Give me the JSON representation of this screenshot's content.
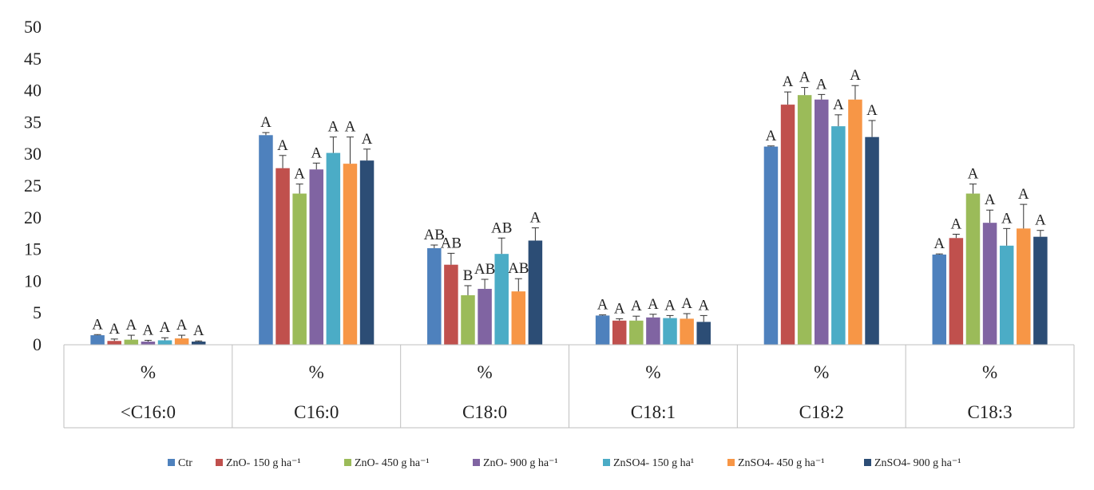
{
  "chart_data": {
    "type": "bar",
    "ylim": [
      0,
      50
    ],
    "yticks": [
      "0",
      "5",
      "10",
      "15",
      "20",
      "25",
      "30",
      "35",
      "40",
      "45",
      "50"
    ],
    "unit_row": [
      "%",
      "%",
      "%",
      "%",
      "%",
      "%"
    ],
    "categories": [
      "<C16:0",
      "C16:0",
      "C18:0",
      "C18:1",
      "C18:2",
      "C18:3"
    ],
    "legend_position": "bottom",
    "series": [
      {
        "name": "Ctr",
        "color": "#4E81BD",
        "values": [
          1.5,
          33.0,
          15.2,
          4.6,
          31.2,
          14.2
        ],
        "errors": [
          0.1,
          0.4,
          0.5,
          0.1,
          0.1,
          0.1
        ],
        "letters": [
          "A",
          "A",
          "AB",
          "A",
          "A",
          "A"
        ]
      },
      {
        "name": "ZnO- 150 g ha⁻¹",
        "color": "#C0504D",
        "values": [
          0.6,
          27.8,
          12.6,
          3.8,
          37.8,
          16.8
        ],
        "errors": [
          0.3,
          2.0,
          1.8,
          0.3,
          2.0,
          0.6
        ],
        "letters": [
          "A",
          "A",
          "AB",
          "A",
          "A",
          "A"
        ]
      },
      {
        "name": "ZnO- 450 g  ha⁻¹",
        "color": "#9BBB59",
        "values": [
          0.8,
          23.8,
          7.8,
          3.8,
          39.3,
          23.8
        ],
        "errors": [
          0.7,
          1.5,
          1.5,
          0.7,
          1.2,
          1.5
        ],
        "letters": [
          "A",
          "A",
          "B",
          "A",
          "A",
          "A"
        ]
      },
      {
        "name": "ZnO- 900 g  ha⁻¹",
        "color": "#8064A2",
        "values": [
          0.5,
          27.6,
          8.8,
          4.3,
          38.6,
          19.2
        ],
        "errors": [
          0.2,
          1.0,
          1.5,
          0.5,
          0.8,
          2.0
        ],
        "letters": [
          "A",
          "A",
          "AB",
          "A",
          "A",
          "A"
        ]
      },
      {
        "name": "ZnSO4- 150 g ha¹",
        "color": "#4BACC6",
        "values": [
          0.7,
          30.2,
          14.3,
          4.2,
          34.4,
          15.6
        ],
        "errors": [
          0.4,
          2.5,
          2.5,
          0.4,
          1.8,
          2.7
        ],
        "letters": [
          "A",
          "A",
          "AB",
          "A",
          "A",
          "A"
        ]
      },
      {
        "name": "ZnSO4- 450 g ha⁻¹",
        "color": "#F79646",
        "values": [
          1.0,
          28.5,
          8.4,
          4.1,
          38.6,
          18.3
        ],
        "errors": [
          0.5,
          4.2,
          2.0,
          0.8,
          2.2,
          3.8
        ],
        "letters": [
          "A",
          "A",
          "AB",
          "A",
          "A",
          "A"
        ]
      },
      {
        "name": "ZnSO4- 900 g  ha⁻¹",
        "color": "#2C4D75",
        "values": [
          0.5,
          29.0,
          16.4,
          3.6,
          32.7,
          17.0
        ],
        "errors": [
          0.1,
          1.8,
          2.0,
          1.0,
          2.6,
          1.0
        ],
        "letters": [
          "A",
          "A",
          "A",
          "A",
          "A",
          "A"
        ]
      }
    ]
  }
}
